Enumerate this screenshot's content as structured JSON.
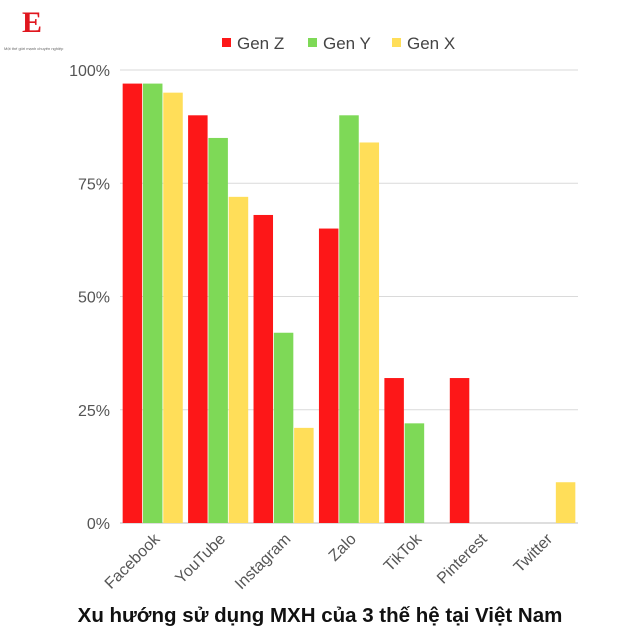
{
  "logo": {
    "letter": "E",
    "tagline": "Một thế giới mạnh chuyên nghiệp"
  },
  "chart_data": {
    "type": "bar",
    "title": "Xu hướng sử dụng MXH của 3 thế hệ tại Việt Nam",
    "categories": [
      "Facebook",
      "YouTube",
      "Instagram",
      "Zalo",
      "TikTok",
      "Pinterest",
      "Twitter"
    ],
    "series": [
      {
        "name": "Gen Z",
        "color": "#fd1718",
        "values": [
          97,
          90,
          68,
          65,
          32,
          32,
          0
        ]
      },
      {
        "name": "Gen Y",
        "color": "#7ed957",
        "values": [
          97,
          85,
          42,
          90,
          22,
          0,
          0
        ]
      },
      {
        "name": "Gen X",
        "color": "#ffde59",
        "values": [
          95,
          72,
          21,
          84,
          0,
          0,
          9
        ]
      }
    ],
    "yticks": [
      "0%",
      "25%",
      "50%",
      "75%",
      "100%"
    ],
    "ylim": [
      0,
      100
    ],
    "grid": true,
    "legend_position": "top-center"
  }
}
